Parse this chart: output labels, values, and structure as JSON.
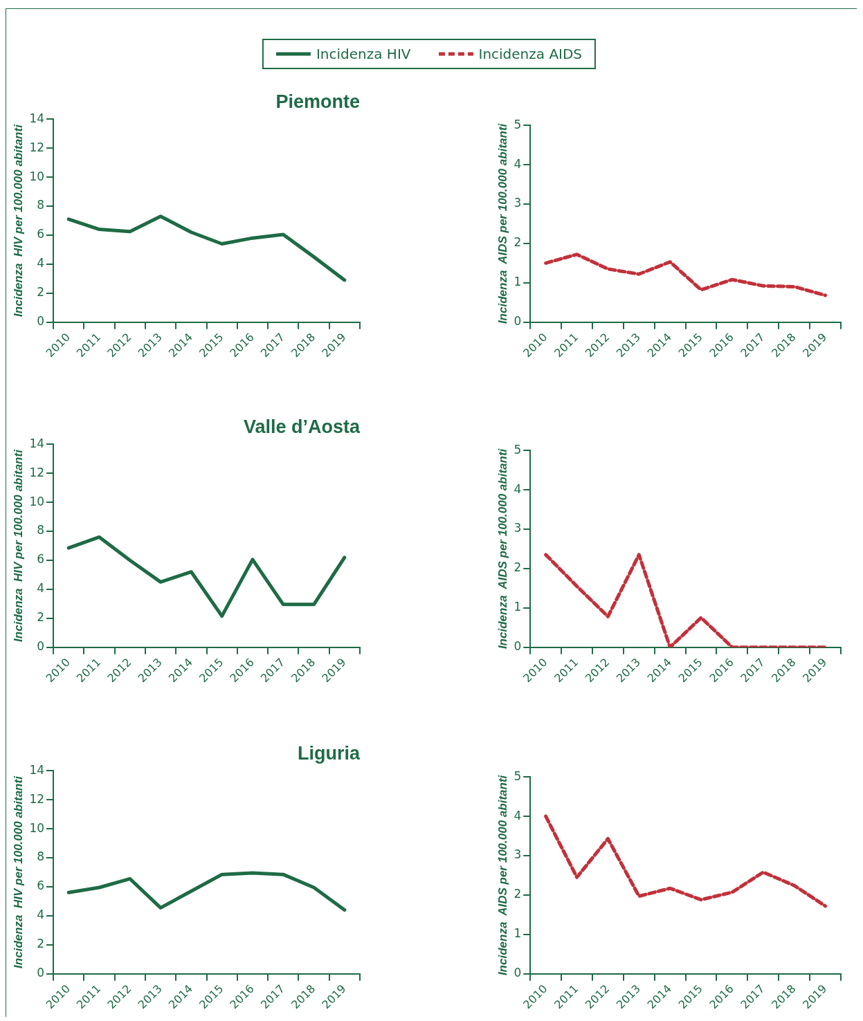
{
  "chart_data": [
    {
      "type": "line",
      "title": "Piemonte",
      "legend": "top",
      "line_style": "solid",
      "marker": "none",
      "ylabel": "Incidenza  HIV per 100.000 abitanti",
      "categories": [
        "2010",
        "2011",
        "2012",
        "2013",
        "2014",
        "2015",
        "2016",
        "2017",
        "2018",
        "2019"
      ],
      "ylim": [
        0,
        14
      ],
      "yticks": [
        0,
        2,
        4,
        6,
        8,
        10,
        12,
        14
      ],
      "series": [
        {
          "name": "Incidenza HIV",
          "color": "#1e6b45",
          "values": [
            7.1,
            6.4,
            6.25,
            7.3,
            6.2,
            5.4,
            5.8,
            6.05,
            4.5,
            2.9
          ]
        }
      ]
    },
    {
      "type": "line",
      "legend": "top",
      "line_style": "dashed",
      "marker": "none",
      "ylabel": "Incidenza  AIDS per 100.000 abitanti",
      "categories": [
        "2010",
        "2011",
        "2012",
        "2013",
        "2014",
        "2015",
        "2016",
        "2017",
        "2018",
        "2019"
      ],
      "ylim": [
        0,
        5
      ],
      "yticks": [
        0,
        1,
        2,
        3,
        4,
        5
      ],
      "series": [
        {
          "name": "Incidenza AIDS",
          "color": "#c1313a",
          "values": [
            1.5,
            1.72,
            1.35,
            1.22,
            1.53,
            0.82,
            1.08,
            0.92,
            0.9,
            0.68
          ]
        }
      ]
    },
    {
      "type": "line",
      "title": "Valle d’Aosta",
      "line_style": "solid",
      "marker": "none",
      "ylabel": "Incidenza  HIV per 100.000 abitanti",
      "categories": [
        "2010",
        "2011",
        "2012",
        "2013",
        "2014",
        "2015",
        "2016",
        "2017",
        "2018",
        "2019"
      ],
      "ylim": [
        0,
        14
      ],
      "yticks": [
        0,
        2,
        4,
        6,
        8,
        10,
        12,
        14
      ],
      "series": [
        {
          "color": "#1e6b45",
          "values": [
            6.85,
            7.6,
            6.0,
            4.5,
            5.2,
            2.15,
            6.05,
            2.95,
            2.95,
            6.2
          ]
        }
      ]
    },
    {
      "type": "line",
      "line_style": "dashed",
      "marker": "none",
      "ylabel": "Incidenza  AIDS per 100.000 abitanti",
      "categories": [
        "2010",
        "2011",
        "2012",
        "2013",
        "2014",
        "2015",
        "2016",
        "2017",
        "2018",
        "2019"
      ],
      "ylim": [
        0,
        5
      ],
      "yticks": [
        0,
        1,
        2,
        3,
        4,
        5
      ],
      "series": [
        {
          "color": "#c1313a",
          "values": [
            2.35,
            1.55,
            0.78,
            2.35,
            0,
            0.75,
            0,
            0,
            0,
            0
          ]
        }
      ]
    },
    {
      "type": "line",
      "title": "Liguria",
      "line_style": "solid",
      "marker": "none",
      "ylabel": "Incidenza  HIV per 100.000 abitanti",
      "categories": [
        "2010",
        "2011",
        "2012",
        "2013",
        "2014",
        "2015",
        "2016",
        "2017",
        "2018",
        "2019"
      ],
      "ylim": [
        0,
        14
      ],
      "yticks": [
        0,
        2,
        4,
        6,
        8,
        10,
        12,
        14
      ],
      "series": [
        {
          "color": "#1e6b45",
          "values": [
            5.6,
            5.95,
            6.55,
            4.55,
            5.7,
            6.85,
            6.95,
            6.85,
            5.95,
            4.4
          ]
        }
      ]
    },
    {
      "type": "line",
      "line_style": "dashed",
      "marker": "none",
      "ylabel": "Incidenza  AIDS per 100.000 abitanti",
      "categories": [
        "2010",
        "2011",
        "2012",
        "2013",
        "2014",
        "2015",
        "2016",
        "2017",
        "2018",
        "2019"
      ],
      "ylim": [
        0,
        5
      ],
      "yticks": [
        0,
        1,
        2,
        3,
        4,
        5
      ],
      "series": [
        {
          "color": "#c1313a",
          "values": [
            4.0,
            2.45,
            3.43,
            1.97,
            2.17,
            1.88,
            2.07,
            2.58,
            2.24,
            1.72
          ]
        }
      ]
    }
  ]
}
